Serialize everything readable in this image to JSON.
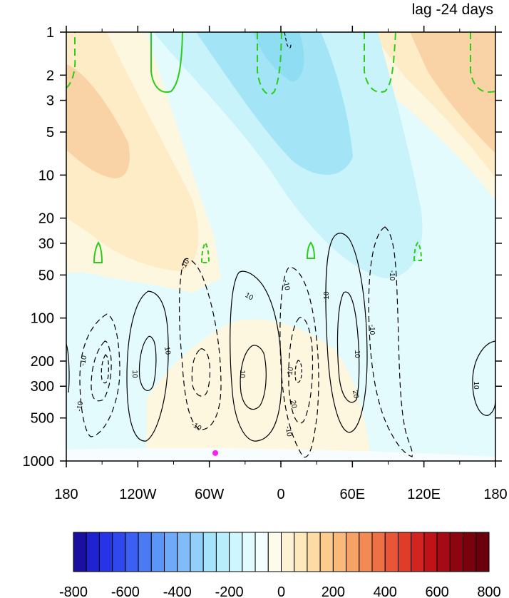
{
  "chart_data": {
    "type": "heatmap",
    "title": "lag -24 days",
    "xlabel": "",
    "ylabel": "",
    "x_ticks": [
      "180",
      "120W",
      "60W",
      "0",
      "60E",
      "120E",
      "180"
    ],
    "x_tick_values": [
      -180,
      -120,
      -60,
      0,
      60,
      120,
      180
    ],
    "y_ticks": [
      "1",
      "2",
      "3",
      "5",
      "10",
      "20",
      "30",
      "50",
      "100",
      "200",
      "300",
      "500",
      "1000"
    ],
    "y_tick_values": [
      1,
      2,
      3,
      5,
      10,
      20,
      30,
      50,
      100,
      200,
      300,
      500,
      1000
    ],
    "xlim": [
      -180,
      180
    ],
    "ylim": [
      1000,
      1
    ],
    "y_scale": "log",
    "y_reversed": true,
    "colorbar": {
      "labels": [
        "-800",
        "-600",
        "-400",
        "-200",
        "0",
        "200",
        "400",
        "600",
        "800"
      ],
      "range": [
        -800,
        800
      ],
      "step": 50,
      "colors": [
        "#1a0f9e",
        "#1f22cf",
        "#2733e6",
        "#2f48ee",
        "#3a5ff2",
        "#4a7bf3",
        "#5b95f5",
        "#6eaaf7",
        "#80bdf8",
        "#92d0f9",
        "#a5e3fb",
        "#b8eefc",
        "#cdf6fd",
        "#e2fbfe",
        "#f3feff",
        "#fdfbea",
        "#fdf3d2",
        "#fde9bb",
        "#fcdca4",
        "#fbcc8e",
        "#f9b97a",
        "#f6a266",
        "#f38a55",
        "#ee7045",
        "#e85637",
        "#e03c2a",
        "#d22520",
        "#bd1319",
        "#a60a15",
        "#8c0511",
        "#7a020d",
        "#6a000b"
      ]
    },
    "contour_labels": [
      "-10",
      "10",
      "-10",
      "10",
      "-10",
      "10",
      "-10",
      "10",
      "-10",
      "20",
      "-10",
      "-10",
      "10",
      "20",
      "-10",
      "10",
      "-10",
      "10"
    ],
    "marker_lon": -55,
    "marker_pressure": 880
  }
}
